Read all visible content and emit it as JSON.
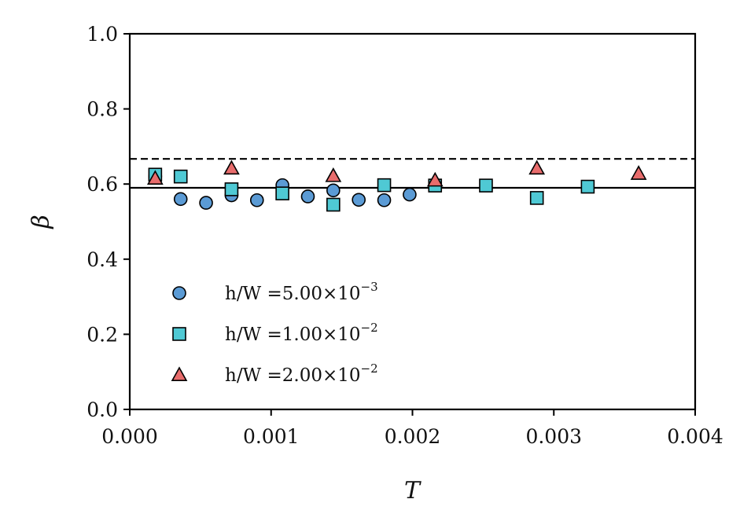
{
  "chart_data": {
    "type": "scatter",
    "xlabel": "T",
    "ylabel": "β",
    "xlim": [
      0,
      0.004
    ],
    "ylim": [
      0,
      1.0
    ],
    "x_ticks": [
      "0.000",
      "0.001",
      "0.002",
      "0.003",
      "0.004"
    ],
    "y_ticks": [
      "0.0",
      "0.2",
      "0.4",
      "0.6",
      "0.8",
      "1.0"
    ],
    "grid": false,
    "legend_position": "lower-left",
    "reference_lines": [
      {
        "style": "dashed",
        "y": 0.667
      },
      {
        "style": "solid",
        "y": 0.59
      }
    ],
    "series": [
      {
        "name": "h/W =5.00×10−3",
        "legend_main": "h/W =5.00×10",
        "legend_exp": "−3",
        "marker": "circle",
        "color": "#5b9bd5",
        "x": [
          0.00018,
          0.00036,
          0.00054,
          0.00072,
          0.0009,
          0.00108,
          0.00126,
          0.00144,
          0.00162,
          0.0018,
          0.00198
        ],
        "y": [
          0.62,
          0.56,
          0.55,
          0.57,
          0.557,
          0.597,
          0.567,
          0.583,
          0.558,
          0.557,
          0.572
        ]
      },
      {
        "name": "h/W =1.00×10−2",
        "legend_main": "h/W =1.00×10",
        "legend_exp": "−2",
        "marker": "square",
        "color": "#4fc9d4",
        "x": [
          0.00018,
          0.00036,
          0.00072,
          0.00108,
          0.00144,
          0.0018,
          0.00216,
          0.00252,
          0.00288,
          0.00324
        ],
        "y": [
          0.625,
          0.62,
          0.586,
          0.575,
          0.545,
          0.597,
          0.596,
          0.596,
          0.563,
          0.593
        ]
      },
      {
        "name": "h/W =2.00×10−2",
        "legend_main": "h/W =2.00×10",
        "legend_exp": "−2",
        "marker": "triangle",
        "color": "#e86c6c",
        "x": [
          0.00018,
          0.00072,
          0.00144,
          0.00216,
          0.00288,
          0.0036
        ],
        "y": [
          0.615,
          0.642,
          0.622,
          0.61,
          0.642,
          0.628
        ]
      }
    ]
  }
}
